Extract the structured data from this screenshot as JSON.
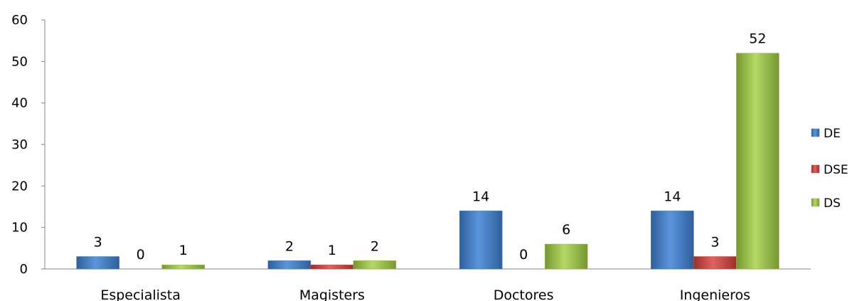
{
  "chart_data": {
    "type": "bar",
    "categories": [
      "Especialista",
      "Magisters",
      "Doctores",
      "Ingenieros"
    ],
    "series": [
      {
        "name": "DE",
        "values": [
          3,
          2,
          14,
          14
        ],
        "color": "#4a7ebb"
      },
      {
        "name": "DSE",
        "values": [
          0,
          1,
          0,
          3
        ],
        "color": "#c0504d"
      },
      {
        "name": "DS",
        "values": [
          1,
          2,
          6,
          52
        ],
        "color": "#9bbb59"
      }
    ],
    "ylim": [
      0,
      60
    ],
    "yticks": [
      0,
      10,
      20,
      30,
      40,
      50,
      60
    ],
    "grid": false,
    "legend_position": "right",
    "data_labels": true
  }
}
